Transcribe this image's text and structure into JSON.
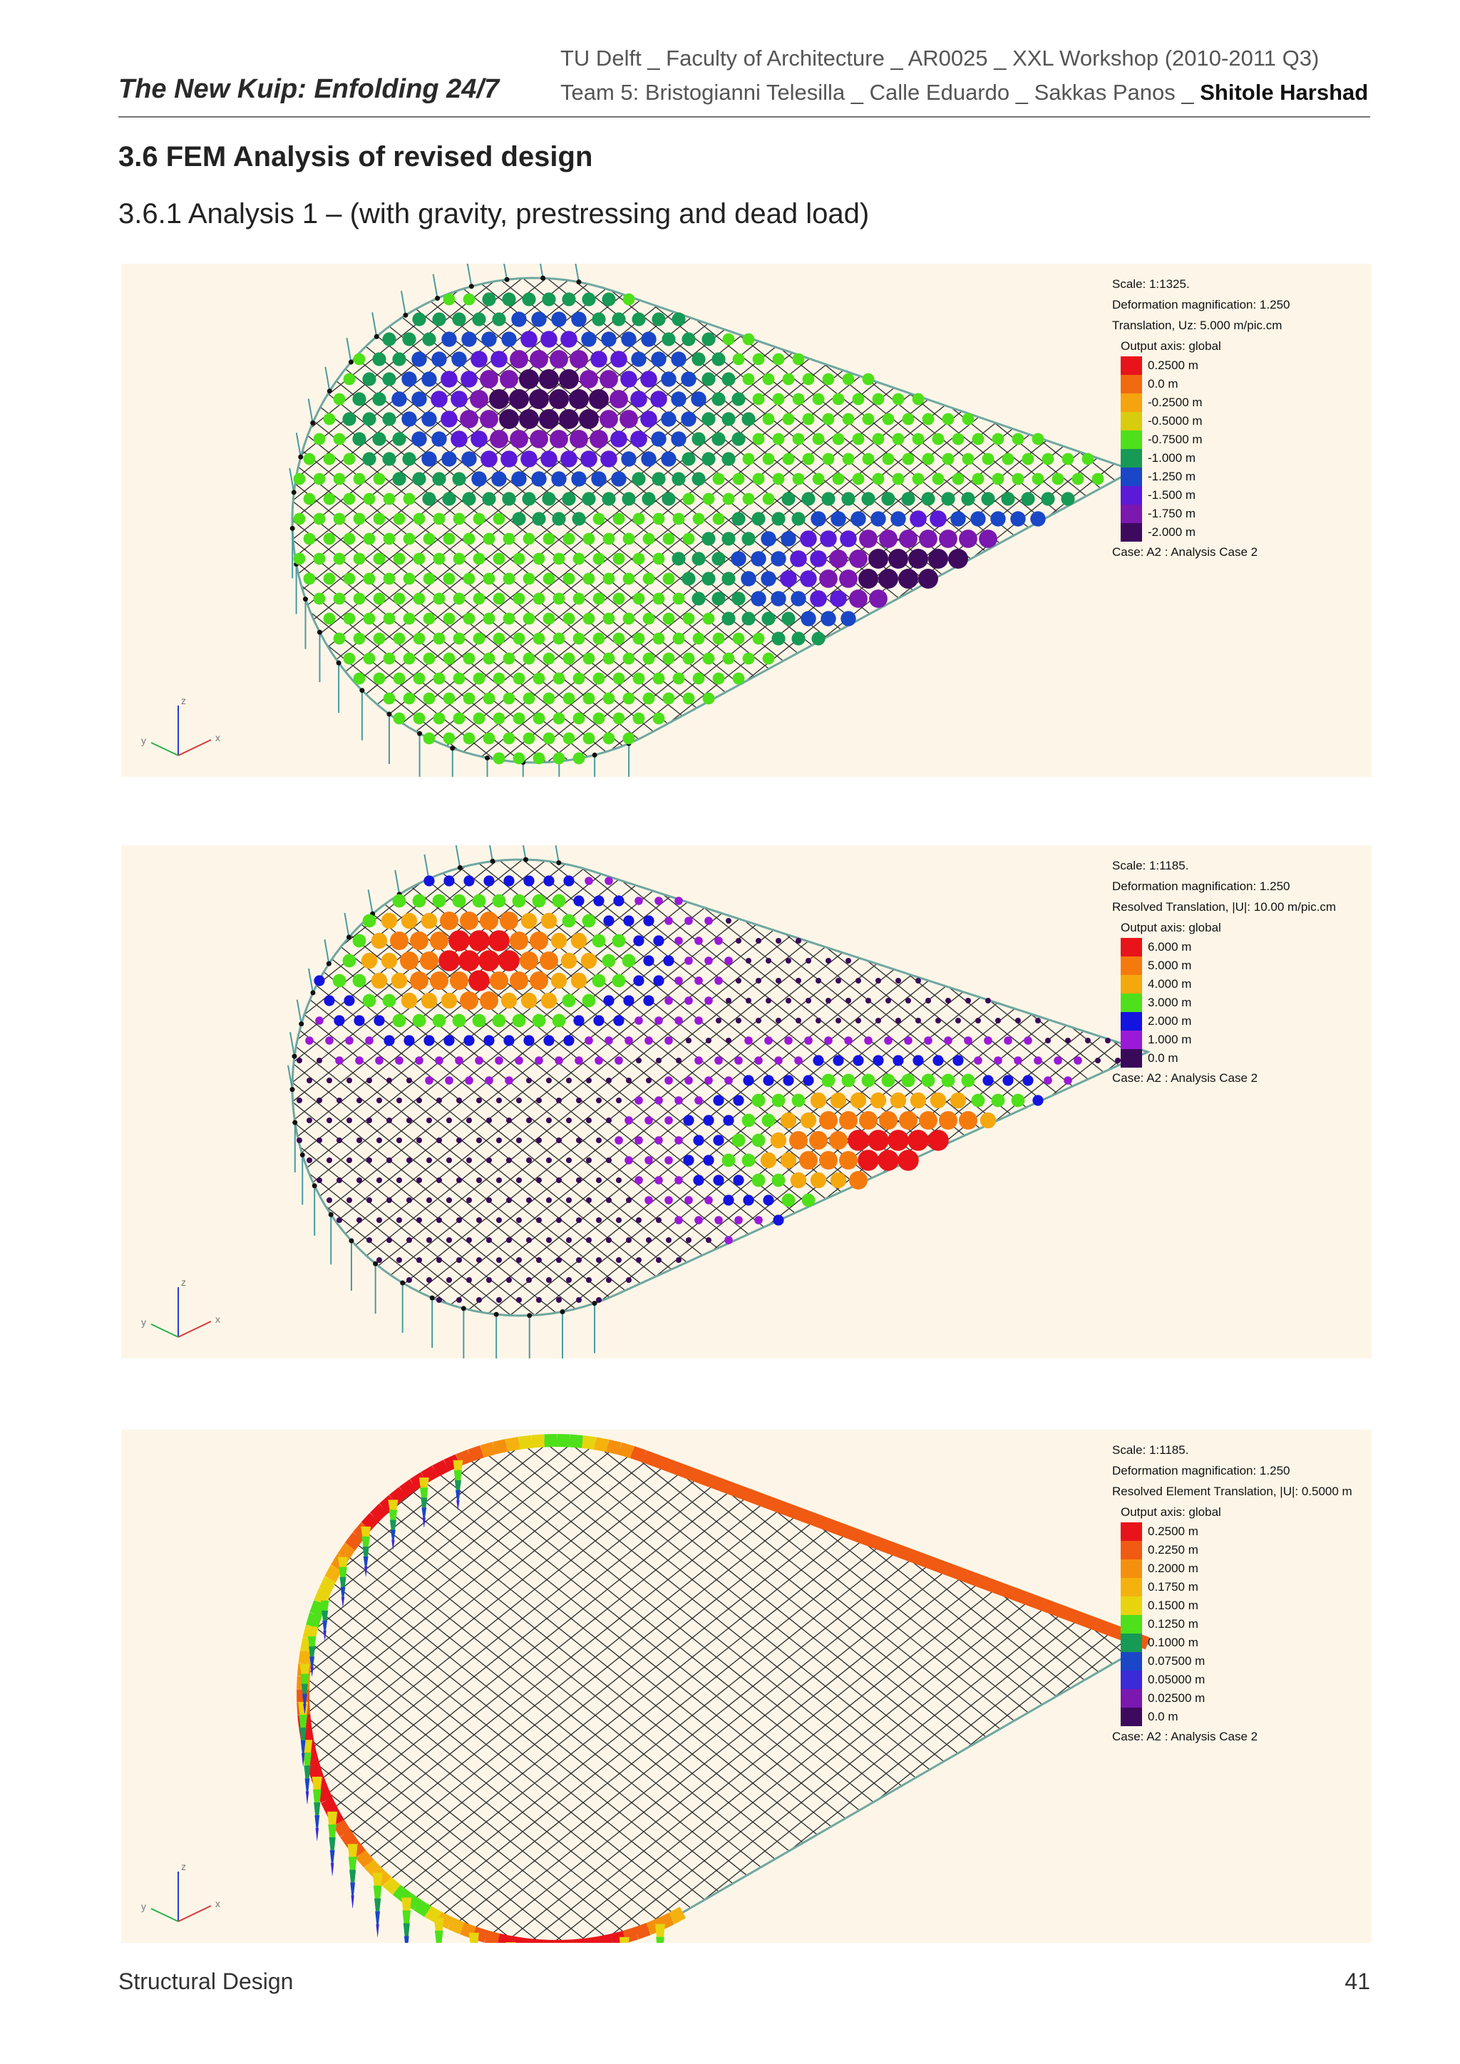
{
  "header": {
    "doc_title": "The New Kuip: Enfolding 24/7",
    "line1": "TU Delft _ Faculty of Architecture _ AR0025 _ XXL Workshop  (2010-2011 Q3)",
    "line2_prefix": "Team 5: Bristogianni Telesilla _ Calle Eduardo _ Sakkas Panos _ ",
    "line2_bold": "Shitole Harshad"
  },
  "section": {
    "title": "3.6 FEM Analysis of revised design",
    "subtitle": "3.6.1 Analysis 1 – (with gravity, prestressing and dead load)"
  },
  "figures": [
    {
      "mode": "nodes-z",
      "scale": "Scale: 1:1325.",
      "deformation": "Deformation magnification: 1.250",
      "quantity": "Translation, Uz: 5.000 m/pic.cm",
      "axis": "Output axis: global",
      "case": "Case: A2 : Analysis Case 2",
      "axis_labels": {
        "x": "x",
        "y": "y",
        "z": "z"
      },
      "legend": [
        {
          "label": "0.2500 m",
          "color": "#e8141a"
        },
        {
          "label": "0.0 m",
          "color": "#f06a10"
        },
        {
          "label": "-0.2500 m",
          "color": "#f5a30e"
        },
        {
          "label": "-0.5000 m",
          "color": "#d8cc0e"
        },
        {
          "label": "-0.7500 m",
          "color": "#4ee01a"
        },
        {
          "label": "-1.000 m",
          "color": "#169a55"
        },
        {
          "label": "-1.250 m",
          "color": "#1a46c8"
        },
        {
          "label": "-1.500 m",
          "color": "#5a1ad8"
        },
        {
          "label": "-1.750 m",
          "color": "#7a18b0"
        },
        {
          "label": "-2.000 m",
          "color": "#3e0a5e"
        }
      ]
    },
    {
      "mode": "nodes-u",
      "scale": "Scale: 1:1185.",
      "deformation": "Deformation magnification: 1.250",
      "quantity": "Resolved Translation, |U|: 10.00 m/pic.cm",
      "axis": "Output axis: global",
      "case": "Case: A2 : Analysis Case 2",
      "axis_labels": {
        "x": "x",
        "y": "y",
        "z": "z"
      },
      "legend": [
        {
          "label": "6.000 m",
          "color": "#e8141a"
        },
        {
          "label": "5.000 m",
          "color": "#f57a0e"
        },
        {
          "label": "4.000 m",
          "color": "#f5a80e"
        },
        {
          "label": "3.000 m",
          "color": "#4ee01a"
        },
        {
          "label": "2.000 m",
          "color": "#1414e0"
        },
        {
          "label": "1.000 m",
          "color": "#9a1ad8"
        },
        {
          "label": "0.0 m",
          "color": "#3a0a5a"
        }
      ]
    },
    {
      "mode": "elements",
      "scale": "Scale: 1:1185.",
      "deformation": "Deformation magnification: 1.250",
      "quantity": "Resolved Element Translation, |U|: 0.5000 m",
      "axis": "Output axis: global",
      "case": "Case: A2 : Analysis Case 2",
      "axis_labels": {
        "x": "x",
        "y": "y",
        "z": "z"
      },
      "legend": [
        {
          "label": "0.2500 m",
          "color": "#e8141a"
        },
        {
          "label": "0.2250 m",
          "color": "#f05a12"
        },
        {
          "label": "0.2000 m",
          "color": "#f5900e"
        },
        {
          "label": "0.1750 m",
          "color": "#f5b20e"
        },
        {
          "label": "0.1500 m",
          "color": "#e8d40e"
        },
        {
          "label": "0.1250 m",
          "color": "#4ee01a"
        },
        {
          "label": "0.1000 m",
          "color": "#169a55"
        },
        {
          "label": "0.07500 m",
          "color": "#1a46c8"
        },
        {
          "label": "0.05000 m",
          "color": "#3a2ad8"
        },
        {
          "label": "0.02500 m",
          "color": "#7a18b0"
        },
        {
          "label": "0.0 m",
          "color": "#3e0a5e"
        }
      ]
    }
  ],
  "footer": {
    "left": "Structural Design",
    "page": "41"
  }
}
